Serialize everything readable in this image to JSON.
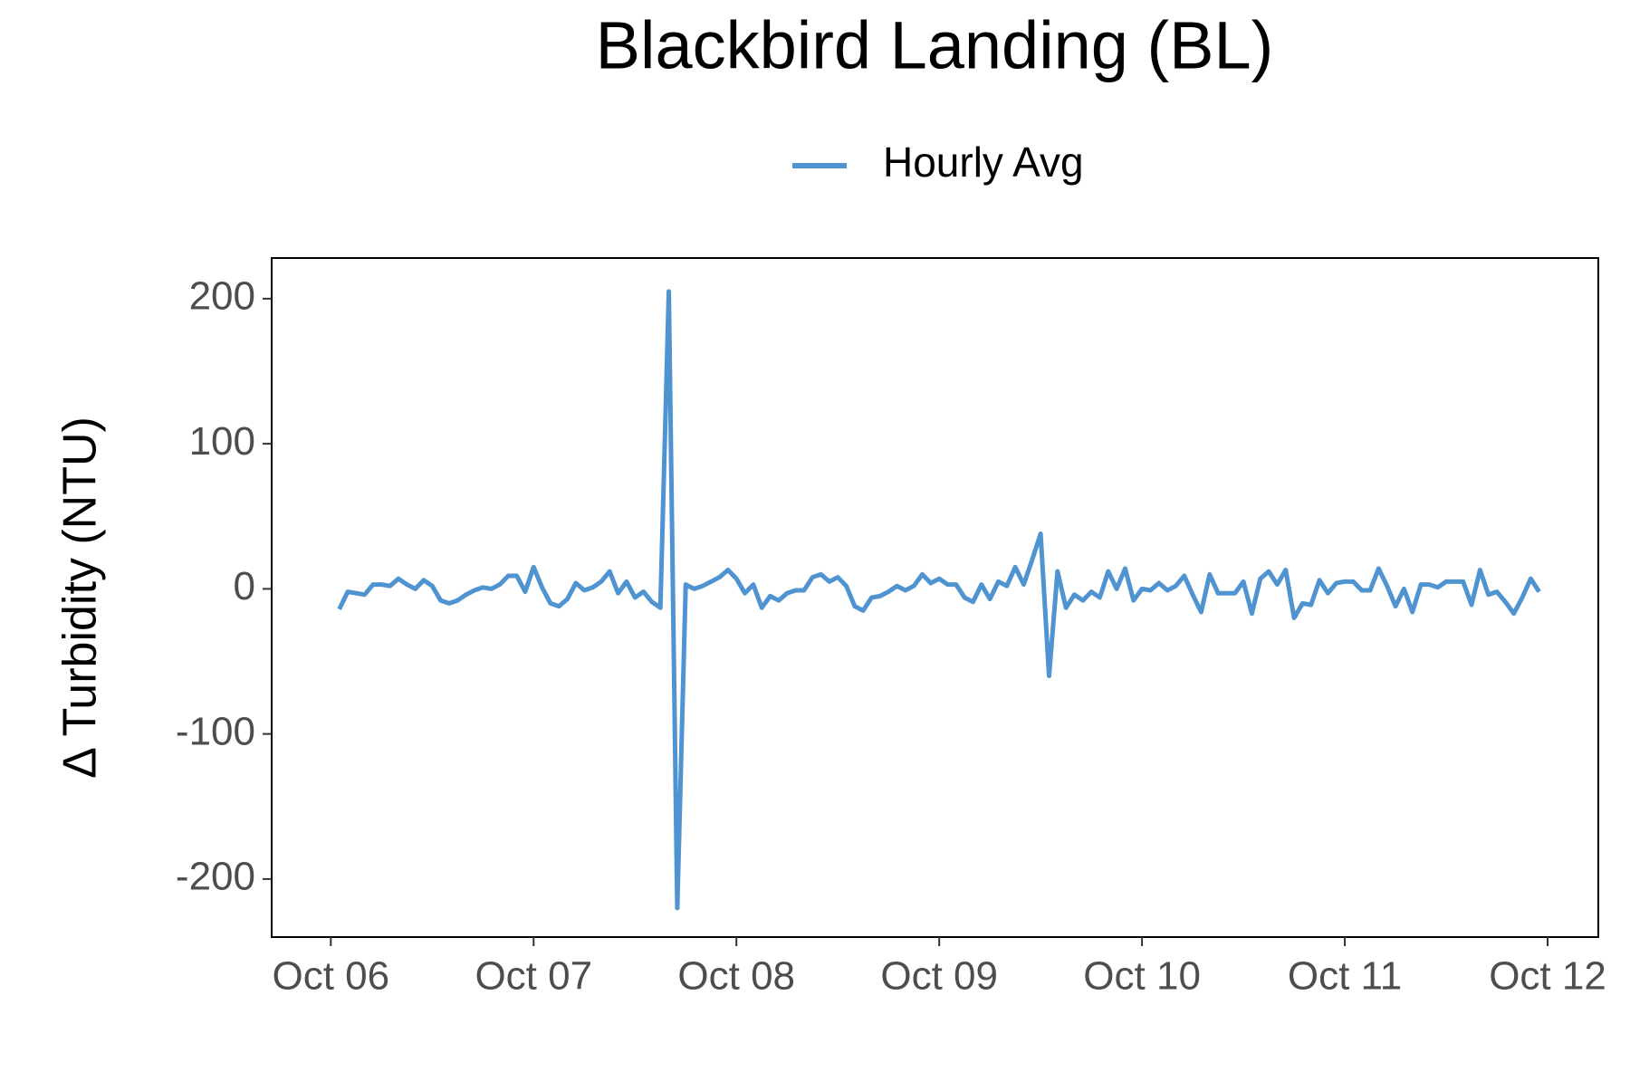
{
  "chart_data": {
    "type": "line",
    "title": "Blackbird Landing (BL)",
    "y_label": "Δ Turbidity (NTU)",
    "legend_position": "top",
    "x": [
      "Oct 06 01:00",
      "Oct 06 02:00",
      "Oct 06 03:00",
      "Oct 06 04:00",
      "Oct 06 05:00",
      "Oct 06 06:00",
      "Oct 06 07:00",
      "Oct 06 08:00",
      "Oct 06 09:00",
      "Oct 06 10:00",
      "Oct 06 11:00",
      "Oct 06 12:00",
      "Oct 06 13:00",
      "Oct 06 14:00",
      "Oct 06 15:00",
      "Oct 06 16:00",
      "Oct 06 17:00",
      "Oct 06 18:00",
      "Oct 06 19:00",
      "Oct 06 20:00",
      "Oct 06 21:00",
      "Oct 06 22:00",
      "Oct 06 23:00",
      "Oct 07 00:00",
      "Oct 07 01:00",
      "Oct 07 02:00",
      "Oct 07 03:00",
      "Oct 07 04:00",
      "Oct 07 05:00",
      "Oct 07 06:00",
      "Oct 07 07:00",
      "Oct 07 08:00",
      "Oct 07 09:00",
      "Oct 07 10:00",
      "Oct 07 11:00",
      "Oct 07 12:00",
      "Oct 07 13:00",
      "Oct 07 14:00",
      "Oct 07 15:00",
      "Oct 07 16:00",
      "Oct 07 17:00",
      "Oct 07 18:00",
      "Oct 07 19:00",
      "Oct 07 20:00",
      "Oct 07 21:00",
      "Oct 07 22:00",
      "Oct 07 23:00",
      "Oct 08 00:00",
      "Oct 08 01:00",
      "Oct 08 02:00",
      "Oct 08 03:00",
      "Oct 08 04:00",
      "Oct 08 05:00",
      "Oct 08 06:00",
      "Oct 08 07:00",
      "Oct 08 08:00",
      "Oct 08 09:00",
      "Oct 08 10:00",
      "Oct 08 11:00",
      "Oct 08 12:00",
      "Oct 08 13:00",
      "Oct 08 14:00",
      "Oct 08 15:00",
      "Oct 08 16:00",
      "Oct 08 17:00",
      "Oct 08 18:00",
      "Oct 08 19:00",
      "Oct 08 20:00",
      "Oct 08 21:00",
      "Oct 08 22:00",
      "Oct 08 23:00",
      "Oct 09 00:00",
      "Oct 09 01:00",
      "Oct 09 02:00",
      "Oct 09 03:00",
      "Oct 09 04:00",
      "Oct 09 05:00",
      "Oct 09 06:00",
      "Oct 09 07:00",
      "Oct 09 08:00",
      "Oct 09 09:00",
      "Oct 09 10:00",
      "Oct 09 11:00",
      "Oct 09 12:00",
      "Oct 09 13:00",
      "Oct 09 14:00",
      "Oct 09 15:00",
      "Oct 09 16:00",
      "Oct 09 17:00",
      "Oct 09 18:00",
      "Oct 09 19:00",
      "Oct 09 20:00",
      "Oct 09 21:00",
      "Oct 09 22:00",
      "Oct 09 23:00",
      "Oct 10 00:00",
      "Oct 10 01:00",
      "Oct 10 02:00",
      "Oct 10 03:00",
      "Oct 10 04:00",
      "Oct 10 05:00",
      "Oct 10 06:00",
      "Oct 10 07:00",
      "Oct 10 08:00",
      "Oct 10 09:00",
      "Oct 10 10:00",
      "Oct 10 11:00",
      "Oct 10 12:00",
      "Oct 10 13:00",
      "Oct 10 14:00",
      "Oct 10 15:00",
      "Oct 10 16:00",
      "Oct 10 17:00",
      "Oct 10 18:00",
      "Oct 10 19:00",
      "Oct 10 20:00",
      "Oct 10 21:00",
      "Oct 10 22:00",
      "Oct 10 23:00",
      "Oct 11 00:00",
      "Oct 11 01:00",
      "Oct 11 02:00",
      "Oct 11 03:00",
      "Oct 11 04:00",
      "Oct 11 05:00",
      "Oct 11 06:00",
      "Oct 11 07:00",
      "Oct 11 08:00",
      "Oct 11 09:00",
      "Oct 11 10:00",
      "Oct 11 11:00",
      "Oct 11 12:00",
      "Oct 11 13:00",
      "Oct 11 14:00",
      "Oct 11 15:00",
      "Oct 11 16:00",
      "Oct 11 17:00",
      "Oct 11 18:00",
      "Oct 11 19:00",
      "Oct 11 20:00",
      "Oct 11 21:00",
      "Oct 11 22:00",
      "Oct 11 23:00"
    ],
    "series": [
      {
        "name": "Hourly Avg",
        "color": "#4f93d0",
        "values": [
          -14,
          -2,
          -3,
          -4,
          3,
          3,
          2,
          7,
          3,
          0,
          6,
          2,
          -8,
          -10,
          -8,
          -4,
          -1,
          1,
          0,
          3,
          9,
          9,
          -2,
          15,
          1,
          -10,
          -12,
          -7,
          4,
          -1,
          1,
          5,
          12,
          -3,
          5,
          -6,
          -2,
          -9,
          -13,
          205,
          -220,
          3,
          0,
          2,
          5,
          8,
          13,
          7,
          -3,
          3,
          -13,
          -5,
          -8,
          -3,
          -1,
          -1,
          8,
          10,
          5,
          8,
          2,
          -12,
          -15,
          -6,
          -5,
          -2,
          2,
          -1,
          2,
          10,
          4,
          7,
          3,
          3,
          -6,
          -9,
          3,
          -7,
          5,
          2,
          15,
          3,
          20,
          38,
          -60,
          12,
          -13,
          -4,
          -8,
          -2,
          -6,
          12,
          0,
          14,
          -8,
          0,
          -1,
          4,
          -1,
          2,
          9,
          -4,
          -16,
          10,
          -3,
          -3,
          -3,
          5,
          -17,
          7,
          12,
          3,
          13,
          -20,
          -10,
          -11,
          6,
          -3,
          4,
          5,
          5,
          -1,
          -1,
          14,
          2,
          -12,
          0,
          -16,
          3,
          3,
          1,
          5,
          5,
          5,
          -11,
          13,
          -4,
          -2,
          -9,
          -17,
          -6,
          7,
          -2
        ]
      }
    ],
    "xlim": [
      "Oct 05 17:00",
      "Oct 12 06:00"
    ],
    "xticks": [
      {
        "value": "Oct 06 00:00",
        "label": "Oct 06"
      },
      {
        "value": "Oct 07 00:00",
        "label": "Oct 07"
      },
      {
        "value": "Oct 08 00:00",
        "label": "Oct 08"
      },
      {
        "value": "Oct 09 00:00",
        "label": "Oct 09"
      },
      {
        "value": "Oct 10 00:00",
        "label": "Oct 10"
      },
      {
        "value": "Oct 11 00:00",
        "label": "Oct 11"
      },
      {
        "value": "Oct 12 00:00",
        "label": "Oct 12"
      }
    ],
    "ylim": [
      -240,
      228
    ],
    "yticks": [
      -200,
      -100,
      0,
      100,
      200
    ],
    "grid": false
  }
}
